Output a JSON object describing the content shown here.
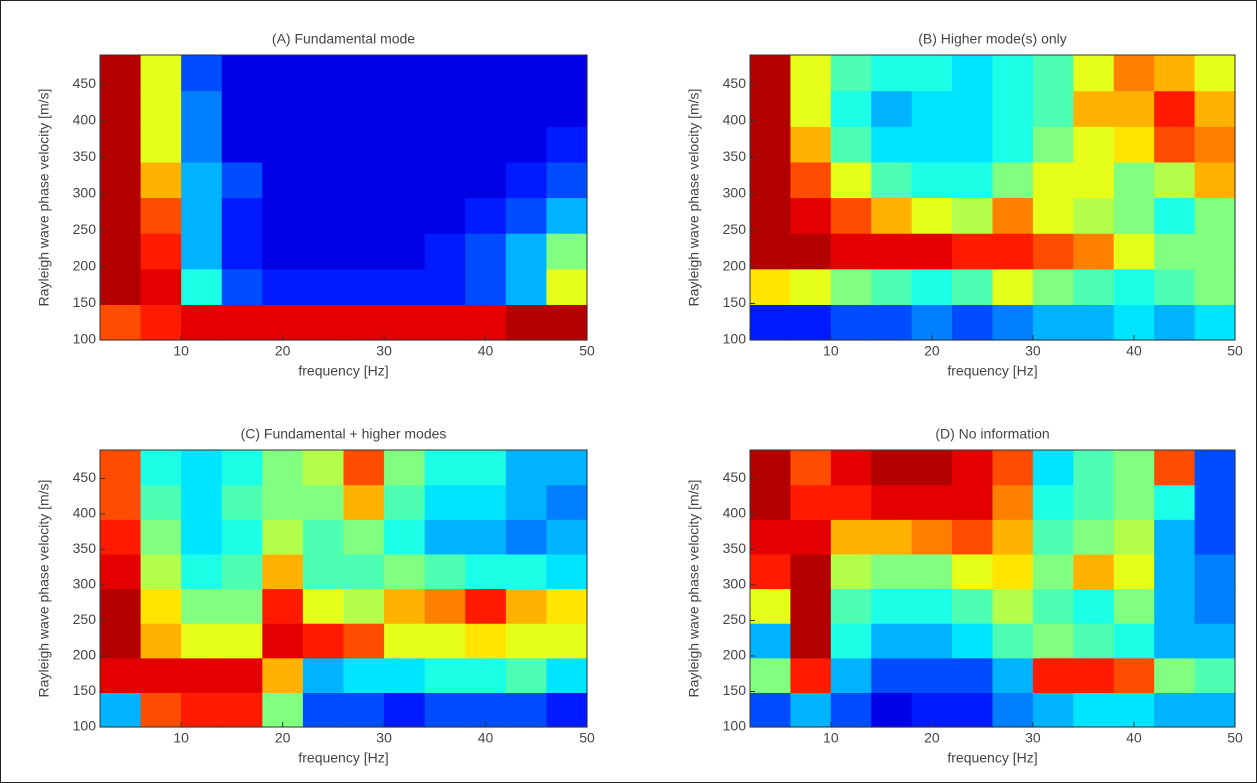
{
  "chart_data": [
    {
      "type": "heatmap",
      "title": "(A) Fundamental mode",
      "xlabel": "frequency [Hz]",
      "ylabel": "Rayleigh wave phase velocity [m/s]",
      "xlim": [
        2,
        50
      ],
      "ylim": [
        100,
        490
      ],
      "xticks": [
        10,
        20,
        30,
        40,
        50
      ],
      "yticks": [
        100,
        150,
        200,
        250,
        300,
        350,
        400,
        450
      ],
      "colormap": "jet",
      "z": [
        [
          0.8,
          0.85,
          0.9,
          0.9,
          0.9,
          0.9,
          0.9,
          0.9,
          0.9,
          0.9,
          0.95,
          0.95
        ],
        [
          0.95,
          0.9,
          0.4,
          0.2,
          0.15,
          0.15,
          0.15,
          0.15,
          0.15,
          0.2,
          0.3,
          0.6
        ],
        [
          0.95,
          0.85,
          0.3,
          0.15,
          0.1,
          0.1,
          0.1,
          0.1,
          0.15,
          0.2,
          0.3,
          0.5
        ],
        [
          0.95,
          0.8,
          0.3,
          0.15,
          0.1,
          0.1,
          0.1,
          0.1,
          0.1,
          0.15,
          0.2,
          0.3
        ],
        [
          0.95,
          0.7,
          0.3,
          0.2,
          0.1,
          0.1,
          0.1,
          0.1,
          0.1,
          0.1,
          0.15,
          0.2
        ],
        [
          0.95,
          0.6,
          0.25,
          0.1,
          0.1,
          0.1,
          0.1,
          0.1,
          0.1,
          0.1,
          0.1,
          0.15
        ],
        [
          0.95,
          0.6,
          0.25,
          0.1,
          0.1,
          0.1,
          0.1,
          0.1,
          0.1,
          0.1,
          0.1,
          0.1
        ],
        [
          0.95,
          0.6,
          0.2,
          0.1,
          0.1,
          0.1,
          0.1,
          0.1,
          0.1,
          0.1,
          0.1,
          0.1
        ]
      ]
    },
    {
      "type": "heatmap",
      "title": "(B) Higher mode(s) only",
      "xlabel": "frequency [Hz]",
      "ylabel": "Rayleigh wave phase velocity [m/s]",
      "xlim": [
        2,
        50
      ],
      "ylim": [
        100,
        490
      ],
      "xticks": [
        10,
        20,
        30,
        40,
        50
      ],
      "yticks": [
        100,
        150,
        200,
        250,
        300,
        350,
        400,
        450
      ],
      "colormap": "jet",
      "z": [
        [
          0.15,
          0.15,
          0.2,
          0.2,
          0.25,
          0.2,
          0.25,
          0.3,
          0.3,
          0.35,
          0.3,
          0.35
        ],
        [
          0.65,
          0.6,
          0.5,
          0.45,
          0.4,
          0.45,
          0.6,
          0.5,
          0.45,
          0.4,
          0.45,
          0.5
        ],
        [
          0.95,
          0.95,
          0.9,
          0.9,
          0.9,
          0.85,
          0.85,
          0.8,
          0.75,
          0.6,
          0.5,
          0.5
        ],
        [
          0.95,
          0.9,
          0.8,
          0.7,
          0.6,
          0.55,
          0.75,
          0.6,
          0.55,
          0.5,
          0.4,
          0.5
        ],
        [
          0.95,
          0.8,
          0.6,
          0.45,
          0.4,
          0.4,
          0.5,
          0.6,
          0.6,
          0.5,
          0.55,
          0.7
        ],
        [
          0.95,
          0.7,
          0.45,
          0.35,
          0.35,
          0.35,
          0.4,
          0.5,
          0.6,
          0.65,
          0.8,
          0.75
        ],
        [
          0.95,
          0.6,
          0.4,
          0.3,
          0.35,
          0.35,
          0.4,
          0.45,
          0.7,
          0.7,
          0.85,
          0.7
        ],
        [
          0.95,
          0.6,
          0.45,
          0.4,
          0.4,
          0.35,
          0.4,
          0.45,
          0.6,
          0.75,
          0.7,
          0.6
        ]
      ]
    },
    {
      "type": "heatmap",
      "title": "(C) Fundamental + higher modes",
      "xlabel": "frequency [Hz]",
      "ylabel": "Rayleigh wave phase velocity [m/s]",
      "xlim": [
        2,
        50
      ],
      "ylim": [
        100,
        490
      ],
      "xticks": [
        10,
        20,
        30,
        40,
        50
      ],
      "yticks": [
        100,
        150,
        200,
        250,
        300,
        350,
        400,
        450
      ],
      "colormap": "jet",
      "z": [
        [
          0.3,
          0.8,
          0.85,
          0.85,
          0.5,
          0.2,
          0.2,
          0.15,
          0.2,
          0.2,
          0.2,
          0.15
        ],
        [
          0.9,
          0.9,
          0.9,
          0.9,
          0.7,
          0.3,
          0.35,
          0.35,
          0.4,
          0.4,
          0.45,
          0.35
        ],
        [
          0.95,
          0.7,
          0.6,
          0.6,
          0.9,
          0.85,
          0.8,
          0.6,
          0.6,
          0.65,
          0.6,
          0.6
        ],
        [
          0.95,
          0.65,
          0.5,
          0.5,
          0.85,
          0.6,
          0.55,
          0.7,
          0.75,
          0.85,
          0.7,
          0.65
        ],
        [
          0.9,
          0.55,
          0.4,
          0.45,
          0.7,
          0.45,
          0.45,
          0.5,
          0.45,
          0.4,
          0.4,
          0.35
        ],
        [
          0.85,
          0.5,
          0.35,
          0.4,
          0.55,
          0.45,
          0.5,
          0.4,
          0.3,
          0.3,
          0.25,
          0.3
        ],
        [
          0.8,
          0.45,
          0.35,
          0.45,
          0.5,
          0.5,
          0.7,
          0.45,
          0.35,
          0.35,
          0.3,
          0.25
        ],
        [
          0.8,
          0.4,
          0.35,
          0.4,
          0.5,
          0.55,
          0.8,
          0.5,
          0.4,
          0.4,
          0.3,
          0.3
        ]
      ]
    },
    {
      "type": "heatmap",
      "title": "(D) No information",
      "xlabel": "frequency [Hz]",
      "ylabel": "Rayleigh wave phase velocity [m/s]",
      "xlim": [
        2,
        50
      ],
      "ylim": [
        100,
        490
      ],
      "xticks": [
        10,
        20,
        30,
        40,
        50
      ],
      "yticks": [
        100,
        150,
        200,
        250,
        300,
        350,
        400,
        450
      ],
      "colormap": "jet",
      "z": [
        [
          0.2,
          0.3,
          0.2,
          0.1,
          0.15,
          0.15,
          0.25,
          0.3,
          0.35,
          0.35,
          0.3,
          0.3
        ],
        [
          0.5,
          0.85,
          0.3,
          0.2,
          0.2,
          0.2,
          0.3,
          0.85,
          0.85,
          0.8,
          0.5,
          0.45
        ],
        [
          0.3,
          0.95,
          0.4,
          0.3,
          0.3,
          0.35,
          0.45,
          0.5,
          0.45,
          0.4,
          0.3,
          0.3
        ],
        [
          0.6,
          0.95,
          0.45,
          0.4,
          0.4,
          0.45,
          0.55,
          0.45,
          0.4,
          0.5,
          0.3,
          0.25
        ],
        [
          0.85,
          0.95,
          0.55,
          0.5,
          0.5,
          0.6,
          0.65,
          0.5,
          0.7,
          0.6,
          0.3,
          0.25
        ],
        [
          0.9,
          0.9,
          0.7,
          0.7,
          0.75,
          0.8,
          0.7,
          0.45,
          0.5,
          0.55,
          0.3,
          0.2
        ],
        [
          0.95,
          0.85,
          0.85,
          0.9,
          0.9,
          0.9,
          0.75,
          0.4,
          0.45,
          0.5,
          0.4,
          0.2
        ],
        [
          0.95,
          0.8,
          0.9,
          0.95,
          0.95,
          0.9,
          0.8,
          0.35,
          0.45,
          0.5,
          0.8,
          0.2
        ]
      ]
    }
  ]
}
